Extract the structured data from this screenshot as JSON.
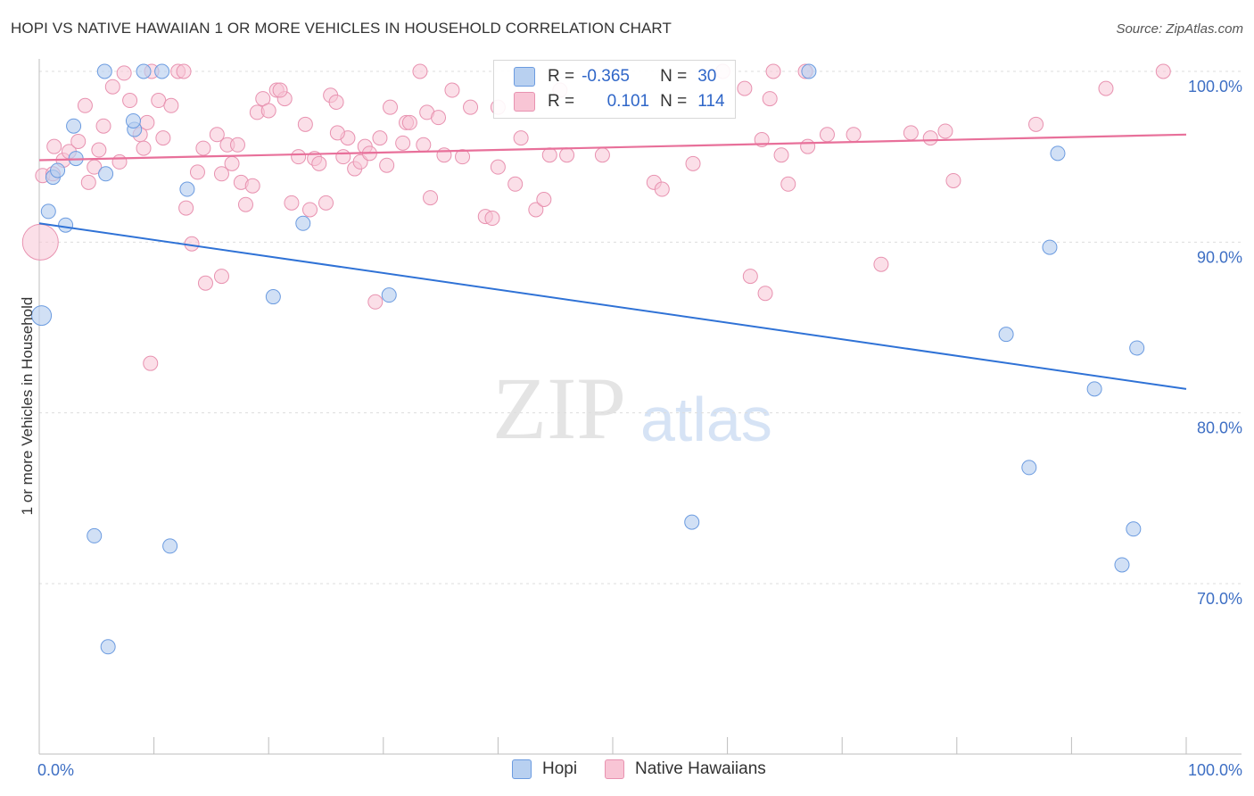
{
  "header": {
    "title": "HOPI VS NATIVE HAWAIIAN 1 OR MORE VEHICLES IN HOUSEHOLD CORRELATION CHART",
    "source": "Source: ZipAtlas.com"
  },
  "watermark": {
    "zip": "ZIP",
    "atlas": "atlas"
  },
  "legend": {
    "rows": [
      {
        "r_label": "R =",
        "r_value": "-0.365",
        "n_label": "N =",
        "n_value": "30"
      },
      {
        "r_label": "R =",
        "r_value": "0.101",
        "n_label": "N =",
        "n_value": "114"
      }
    ]
  },
  "colors": {
    "hopi_fill": "#b8d0f0",
    "hopi_stroke": "#6b9be0",
    "hopi_line": "#2f72d6",
    "hawaiian_fill": "#f8c5d5",
    "hawaiian_stroke": "#e892b0",
    "hawaiian_line": "#e8709a",
    "tick_label": "#3e6fc4",
    "grid": "#dddddd"
  },
  "chart_data": {
    "type": "scatter",
    "title": "HOPI VS NATIVE HAWAIIAN 1 OR MORE VEHICLES IN HOUSEHOLD CORRELATION CHART",
    "xlabel": "",
    "ylabel": "1 or more Vehicles in Household",
    "xlim": [
      0,
      100
    ],
    "ylim": [
      60,
      102
    ],
    "x_ticks": [
      "0.0%",
      "100.0%"
    ],
    "y_ticks": [
      {
        "value": 70,
        "label": "70.0%"
      },
      {
        "value": 80,
        "label": "80.0%"
      },
      {
        "value": 90,
        "label": "90.0%"
      },
      {
        "value": 100,
        "label": "100.0%"
      }
    ],
    "grid": true,
    "legend_position": "top-center",
    "series": [
      {
        "name": "Hopi",
        "trend": {
          "x": [
            0,
            100
          ],
          "y": [
            91.1,
            81.4
          ]
        },
        "points": [
          [
            0.2,
            85.7
          ],
          [
            0.8,
            91.8
          ],
          [
            1.2,
            93.8
          ],
          [
            1.6,
            94.2
          ],
          [
            2.3,
            91.0
          ],
          [
            3.0,
            96.8
          ],
          [
            3.2,
            94.9
          ],
          [
            5.7,
            100.0
          ],
          [
            5.8,
            94.0
          ],
          [
            4.8,
            72.8
          ],
          [
            6.0,
            66.3
          ],
          [
            8.3,
            96.6
          ],
          [
            8.2,
            97.1
          ],
          [
            9.1,
            100.0
          ],
          [
            10.7,
            100.0
          ],
          [
            11.4,
            72.2
          ],
          [
            12.9,
            93.1
          ],
          [
            20.4,
            86.8
          ],
          [
            23.0,
            91.1
          ],
          [
            30.5,
            86.9
          ],
          [
            56.9,
            73.6
          ],
          [
            67.1,
            100.0
          ],
          [
            84.3,
            84.6
          ],
          [
            86.3,
            76.8
          ],
          [
            88.1,
            89.7
          ],
          [
            88.8,
            95.2
          ],
          [
            92.0,
            81.4
          ],
          [
            94.4,
            71.1
          ],
          [
            95.4,
            73.2
          ],
          [
            95.7,
            83.8
          ]
        ]
      },
      {
        "name": "Native Hawaiians",
        "trend": {
          "x": [
            0,
            100
          ],
          "y": [
            94.8,
            96.3
          ]
        },
        "points": [
          [
            0.1,
            90.0
          ],
          [
            0.3,
            93.9
          ],
          [
            1.2,
            94.0
          ],
          [
            1.3,
            95.6
          ],
          [
            2.1,
            94.8
          ],
          [
            2.6,
            95.3
          ],
          [
            3.4,
            95.9
          ],
          [
            4.0,
            98.0
          ],
          [
            4.3,
            93.5
          ],
          [
            4.8,
            94.4
          ],
          [
            5.2,
            95.4
          ],
          [
            5.6,
            96.8
          ],
          [
            6.4,
            99.1
          ],
          [
            7.0,
            94.7
          ],
          [
            7.4,
            99.9
          ],
          [
            7.9,
            98.3
          ],
          [
            8.8,
            96.3
          ],
          [
            9.1,
            95.5
          ],
          [
            9.4,
            97.0
          ],
          [
            9.8,
            100.0
          ],
          [
            9.7,
            82.9
          ],
          [
            10.4,
            98.3
          ],
          [
            10.8,
            96.1
          ],
          [
            11.5,
            98.0
          ],
          [
            12.1,
            100.0
          ],
          [
            12.8,
            92.0
          ],
          [
            13.3,
            89.9
          ],
          [
            13.8,
            94.1
          ],
          [
            14.3,
            95.5
          ],
          [
            14.5,
            87.6
          ],
          [
            15.5,
            96.3
          ],
          [
            15.9,
            94.0
          ],
          [
            16.4,
            95.7
          ],
          [
            16.8,
            94.6
          ],
          [
            17.3,
            95.7
          ],
          [
            17.6,
            93.5
          ],
          [
            18.0,
            92.2
          ],
          [
            18.6,
            93.3
          ],
          [
            19.0,
            97.6
          ],
          [
            19.5,
            98.4
          ],
          [
            20.0,
            97.7
          ],
          [
            20.7,
            98.9
          ],
          [
            21.4,
            98.4
          ],
          [
            22.0,
            92.3
          ],
          [
            22.6,
            95.0
          ],
          [
            23.2,
            96.9
          ],
          [
            23.6,
            91.9
          ],
          [
            24.0,
            94.9
          ],
          [
            24.4,
            94.6
          ],
          [
            25.0,
            92.3
          ],
          [
            25.4,
            98.6
          ],
          [
            25.9,
            98.2
          ],
          [
            26.5,
            95.0
          ],
          [
            26.9,
            96.1
          ],
          [
            27.5,
            94.3
          ],
          [
            28.0,
            94.7
          ],
          [
            28.4,
            95.6
          ],
          [
            28.8,
            95.2
          ],
          [
            29.3,
            86.5
          ],
          [
            29.7,
            96.1
          ],
          [
            30.3,
            94.5
          ],
          [
            30.6,
            97.9
          ],
          [
            31.7,
            95.8
          ],
          [
            32.0,
            97.0
          ],
          [
            32.3,
            97.0
          ],
          [
            33.5,
            95.7
          ],
          [
            33.8,
            97.6
          ],
          [
            34.1,
            92.6
          ],
          [
            34.8,
            97.3
          ],
          [
            35.3,
            95.1
          ],
          [
            36.0,
            98.9
          ],
          [
            36.9,
            95.0
          ],
          [
            37.6,
            97.9
          ],
          [
            38.9,
            91.5
          ],
          [
            39.5,
            91.4
          ],
          [
            40.0,
            94.4
          ],
          [
            41.5,
            93.4
          ],
          [
            42.0,
            96.1
          ],
          [
            43.3,
            91.9
          ],
          [
            44.0,
            92.5
          ],
          [
            44.5,
            95.1
          ],
          [
            45.4,
            98.9
          ],
          [
            46.0,
            95.1
          ],
          [
            49.1,
            95.1
          ],
          [
            53.6,
            93.5
          ],
          [
            54.3,
            93.1
          ],
          [
            57.0,
            94.6
          ],
          [
            61.5,
            99.0
          ],
          [
            62.0,
            88.0
          ],
          [
            63.0,
            96.0
          ],
          [
            64.0,
            100.0
          ],
          [
            65.3,
            93.4
          ],
          [
            67.0,
            95.6
          ],
          [
            68.7,
            96.3
          ],
          [
            71.0,
            96.3
          ],
          [
            73.4,
            88.7
          ],
          [
            76.0,
            96.4
          ],
          [
            77.7,
            96.1
          ],
          [
            79.0,
            96.5
          ],
          [
            79.7,
            93.6
          ],
          [
            86.9,
            96.9
          ],
          [
            93.0,
            99.0
          ],
          [
            98.0,
            100.0
          ],
          [
            59.6,
            100.0
          ],
          [
            63.7,
            98.4
          ],
          [
            66.8,
            100.0
          ],
          [
            64.7,
            95.1
          ],
          [
            63.3,
            87.0
          ],
          [
            15.9,
            88.0
          ],
          [
            21.0,
            98.9
          ],
          [
            26.0,
            96.4
          ],
          [
            33.2,
            100.0
          ],
          [
            12.6,
            100.0
          ],
          [
            40.0,
            97.9
          ]
        ]
      }
    ]
  },
  "bottom_legend": {
    "items": [
      {
        "label": "Hopi"
      },
      {
        "label": "Native Hawaiians"
      }
    ]
  }
}
